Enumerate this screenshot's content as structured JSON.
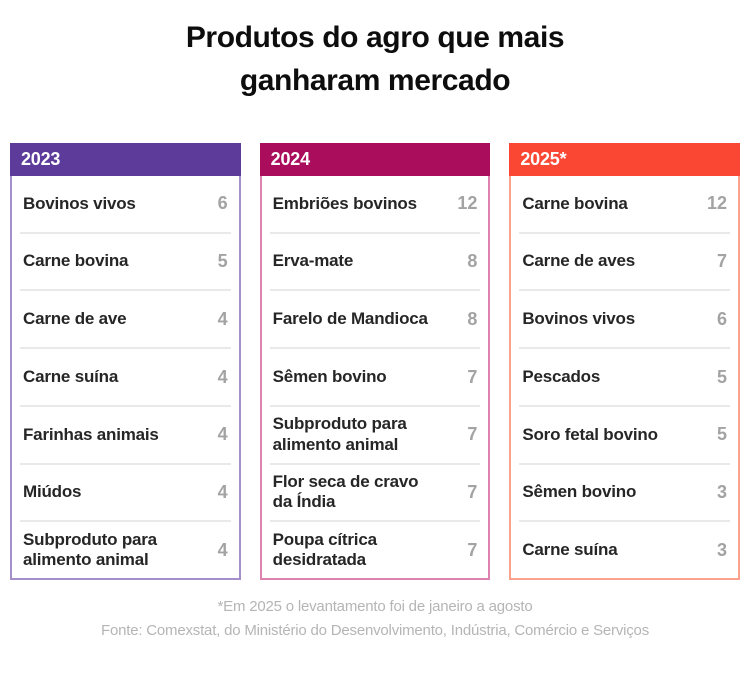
{
  "title": {
    "line1": "Produtos do agro que mais",
    "line2": "ganharam mercado"
  },
  "columns": [
    {
      "year": "2023",
      "header_color": "#5c3b9b",
      "border_color": "#a48fcb",
      "items": [
        {
          "name": "Bovinos vivos",
          "value": 6
        },
        {
          "name": "Carne bovina",
          "value": 5
        },
        {
          "name": "Carne de ave",
          "value": 4
        },
        {
          "name": "Carne suína",
          "value": 4
        },
        {
          "name": "Farinhas animais",
          "value": 4
        },
        {
          "name": "Miúdos",
          "value": 4
        },
        {
          "name": "Subproduto para alimento animal",
          "value": 4
        }
      ]
    },
    {
      "year": "2024",
      "header_color": "#aa0d5c",
      "border_color": "#dd82b1",
      "items": [
        {
          "name": "Embriões bovinos",
          "value": 12
        },
        {
          "name": "Erva-mate",
          "value": 8
        },
        {
          "name": "Farelo de Mandioca",
          "value": 8
        },
        {
          "name": "Sêmen bovino",
          "value": 7
        },
        {
          "name": "Subproduto para alimento animal",
          "value": 7
        },
        {
          "name": "Flor seca de cravo da Índia",
          "value": 7
        },
        {
          "name": "Poupa cítrica desidratada",
          "value": 7
        }
      ]
    },
    {
      "year": "2025*",
      "header_color": "#fa4733",
      "border_color": "#fba28e",
      "items": [
        {
          "name": "Carne bovina",
          "value": 12
        },
        {
          "name": "Carne de aves",
          "value": 7
        },
        {
          "name": "Bovinos vivos",
          "value": 6
        },
        {
          "name": "Pescados",
          "value": 5
        },
        {
          "name": "Soro fetal bovino",
          "value": 5
        },
        {
          "name": "Sêmen bovino",
          "value": 3
        },
        {
          "name": "Carne suína",
          "value": 3
        }
      ]
    }
  ],
  "footer": {
    "footnote": "*Em 2025 o levantamento foi de janeiro a agosto",
    "source": "Fonte: Comexstat, do Ministério do Desenvolvimento, Indústria, Comércio e Serviços"
  },
  "chart_data": {
    "type": "table",
    "title": "Produtos do agro que mais ganharam mercado",
    "tables": [
      {
        "year": "2023",
        "products": [
          "Bovinos vivos",
          "Carne bovina",
          "Carne de ave",
          "Carne suína",
          "Farinhas animais",
          "Miúdos",
          "Subproduto para alimento animal"
        ],
        "values": [
          6,
          5,
          4,
          4,
          4,
          4,
          4
        ],
        "accent_color": "#5c3b9b"
      },
      {
        "year": "2024",
        "products": [
          "Embriões bovinos",
          "Erva-mate",
          "Farelo de Mandioca",
          "Sêmen bovino",
          "Subproduto para alimento animal",
          "Flor seca de cravo da Índia",
          "Poupa cítrica desidratada"
        ],
        "values": [
          12,
          8,
          8,
          7,
          7,
          7,
          7
        ],
        "accent_color": "#aa0d5c"
      },
      {
        "year": "2025*",
        "products": [
          "Carne bovina",
          "Carne de aves",
          "Bovinos vivos",
          "Pescados",
          "Soro fetal bovino",
          "Sêmen bovino",
          "Carne suína"
        ],
        "values": [
          12,
          7,
          6,
          5,
          5,
          3,
          3
        ],
        "accent_color": "#fa4733"
      }
    ],
    "footnote": "*Em 2025 o levantamento foi de janeiro a agosto",
    "source": "Fonte: Comexstat, do Ministério do Desenvolvimento, Indústria, Comércio e Serviços"
  }
}
